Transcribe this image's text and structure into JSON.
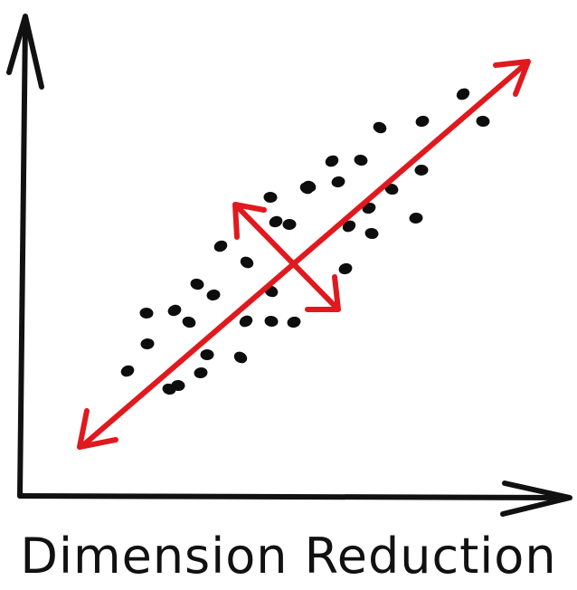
{
  "caption": "Dimension Reduction",
  "colors": {
    "ink": "#111111",
    "principal_axis": "#e0191e",
    "points": "#0d0d0d",
    "background": "#ffffff"
  },
  "diagram": {
    "axes": "two black hand-drawn axes with arrowheads (vertical up, horizontal right)",
    "principal_axis": "long red double-headed arrow along the point cloud",
    "secondary_axis": "short red double-headed arrow perpendicular to the principal axis",
    "points_shape": "black elliptical dots forming a diagonal cloud"
  }
}
